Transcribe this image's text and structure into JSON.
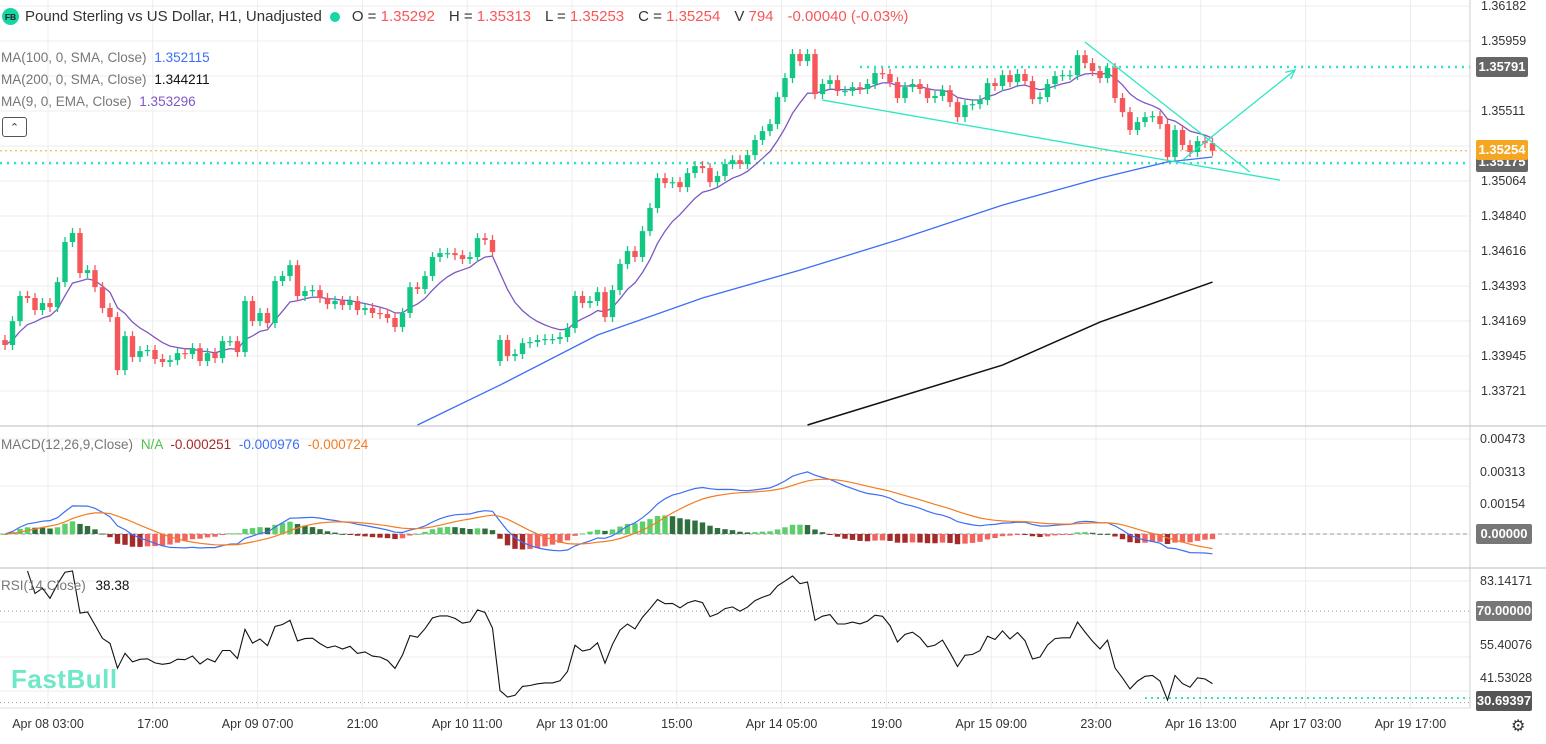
{
  "header": {
    "logo": "FB",
    "title": "Pound Sterling vs US Dollar, H1, Unadjusted",
    "o_label": "O =",
    "o": "1.35292",
    "h_label": "H =",
    "h": "1.35313",
    "l_label": "L =",
    "l": "1.35253",
    "c_label": "C =",
    "c": "1.35254",
    "v_label": "V",
    "v": "794",
    "change": "-0.00040 (-0.03%)"
  },
  "indicators": {
    "ma100": {
      "label": "MA(100, 0, SMA, Close)",
      "value": "1.352115",
      "color": "#3d6ff5"
    },
    "ma200": {
      "label": "MA(200, 0, SMA, Close)",
      "value": "1.344211",
      "color": "#111111"
    },
    "ma9": {
      "label": "MA(9, 0, EMA, Close)",
      "value": "1.353296",
      "color": "#7e57c2"
    },
    "collapse_icon": "chevron-up",
    "macd": {
      "label": "MACD(12,26,9,Close)",
      "na": "N/A",
      "hist": "-0.000251",
      "macd": "-0.000976",
      "signal": "-0.000724"
    },
    "rsi": {
      "label": "RSI(14,Close)",
      "value": "38.38"
    }
  },
  "price_axis": {
    "ticks": [
      "1.36182",
      "1.35959",
      "1.35511",
      "1.35064",
      "1.34840",
      "1.34616",
      "1.34393",
      "1.34169",
      "1.33945",
      "1.33721"
    ],
    "tags": {
      "resistance": "1.35791",
      "current": "1.35254",
      "support": "1.35175"
    }
  },
  "macd_axis": {
    "ticks": [
      "0.00473",
      "0.00313",
      "0.00154"
    ],
    "zero_tag": "0.00000"
  },
  "rsi_axis": {
    "ticks": [
      "83.14171",
      "55.40076",
      "41.53028"
    ],
    "tag70": "70.00000",
    "tag_low": "30.69397"
  },
  "time_axis": [
    "Apr 08 03:00",
    "17:00",
    "Apr 09 07:00",
    "21:00",
    "Apr 10 11:00",
    "Apr 13 01:00",
    "15:00",
    "Apr 14 05:00",
    "19:00",
    "Apr 15 09:00",
    "23:00",
    "Apr 16 13:00",
    "Apr 17 03:00",
    "Apr 19 17:00"
  ],
  "watermark": "FastBull",
  "colors": {
    "up": "#12c784",
    "down": "#f6575a",
    "drawing": "#2ee6c3",
    "current": "#f5a623"
  },
  "chart_data": {
    "type": "candlestick",
    "symbol": "GBPUSD",
    "timeframe": "H1",
    "ylim": [
      1.3372,
      1.36182
    ],
    "first_open": 1.34041,
    "gap_after_index": 65,
    "gap_open": 1.33906,
    "closes": [
      1.34009,
      1.34162,
      1.34323,
      1.3431,
      1.34233,
      1.34278,
      1.34252,
      1.34412,
      1.34669,
      1.34727,
      1.3447,
      1.34489,
      1.3438,
      1.34246,
      1.34188,
      1.33848,
      1.34066,
      1.33932,
      1.3397,
      1.33977,
      1.33919,
      1.339,
      1.33912,
      1.33957,
      1.33951,
      1.33989,
      1.33906,
      1.33957,
      1.33925,
      1.34034,
      1.34034,
      1.33964,
      1.34291,
      1.34162,
      1.34214,
      1.3415,
      1.34419,
      1.34451,
      1.34521,
      1.34323,
      1.34355,
      1.34361,
      1.3431,
      1.34271,
      1.34291,
      1.34265,
      1.34291,
      1.34233,
      1.34246,
      1.34214,
      1.34207,
      1.34182,
      1.34124,
      1.34214,
      1.3438,
      1.34368,
      1.34451,
      1.34573,
      1.34598,
      1.34598,
      1.34585,
      1.3456,
      1.34573,
      1.34694,
      1.34682,
      1.34605,
      1.34041,
      1.33938,
      1.33951,
      1.34021,
      1.34028,
      1.34041,
      1.34047,
      1.34047,
      1.3406,
      1.34118,
      1.34323,
      1.34278,
      1.34291,
      1.34348,
      1.34188,
      1.34361,
      1.34528,
      1.34611,
      1.34573,
      1.34739,
      1.34887,
      1.35079,
      1.35047,
      1.35053,
      1.35021,
      1.35111,
      1.35156,
      1.35143,
      1.35053,
      1.35092,
      1.35169,
      1.35194,
      1.35169,
      1.35226,
      1.35323,
      1.3538,
      1.35425,
      1.35598,
      1.3572,
      1.35874,
      1.35829,
      1.35874,
      1.35617,
      1.35682,
      1.35707,
      1.35637,
      1.35637,
      1.35662,
      1.3565,
      1.35682,
      1.35752,
      1.35746,
      1.35694,
      1.35592,
      1.35662,
      1.35682,
      1.3565,
      1.35592,
      1.35605,
      1.35643,
      1.35566,
      1.3547,
      1.35547,
      1.35553,
      1.35579,
      1.35688,
      1.35669,
      1.35739,
      1.35694,
      1.35746,
      1.35701,
      1.35585,
      1.35598,
      1.35682,
      1.35733,
      1.35739,
      1.35739,
      1.35867,
      1.35816,
      1.35765,
      1.3572,
      1.35784,
      1.35592,
      1.35502,
      1.35387,
      1.35438,
      1.3547,
      1.35476,
      1.35425,
      1.35214,
      1.35387,
      1.35291,
      1.35246,
      1.35316,
      1.35303,
      1.35254
    ],
    "ma100_points": [
      [
        55,
        1.33496
      ],
      [
        66,
        1.33752
      ],
      [
        79,
        1.34073
      ],
      [
        93,
        1.3431
      ],
      [
        106,
        1.34489
      ],
      [
        119,
        1.34682
      ],
      [
        133,
        1.34906
      ],
      [
        146,
        1.35079
      ],
      [
        155,
        1.35182
      ],
      [
        161,
        1.35214
      ]
    ],
    "ma200_points": [
      [
        107,
        1.33496
      ],
      [
        133,
        1.3388
      ],
      [
        146,
        1.34156
      ],
      [
        161,
        1.34412
      ]
    ],
    "levels": {
      "resistance": 1.35791,
      "support": 1.35175,
      "current": 1.35254,
      "rsi_overbought": 70,
      "rsi_low": 30.69397
    },
    "trendlines": [
      {
        "from": [
          109,
          1.35579
        ],
        "to": [
          170,
          1.35066
        ]
      },
      {
        "from": [
          144,
          1.35951
        ],
        "to": [
          166,
          1.35117
        ]
      }
    ],
    "arrow": {
      "from": [
        157,
        1.35194
      ],
      "to": [
        172,
        1.35771
      ]
    },
    "macd_ylim": [
      -0.0016,
      0.0052
    ],
    "rsi_ylim": [
      29,
      88
    ]
  }
}
